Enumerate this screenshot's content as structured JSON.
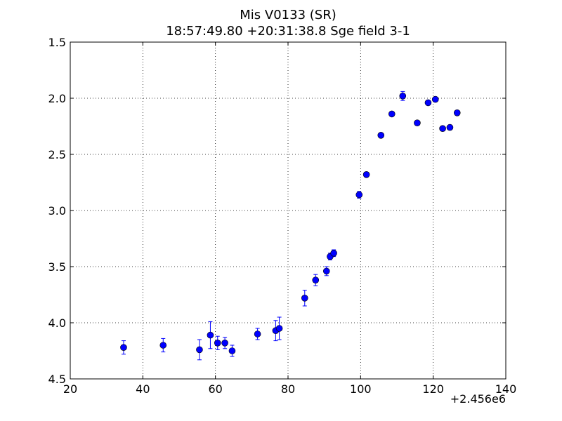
{
  "chart_data": {
    "type": "scatter",
    "title": "Mis V0133 (SR)",
    "subtitle": "18:57:49.80 +20:31:38.8 Sge field 3-1",
    "xlabel": "",
    "ylabel": "",
    "x_offset_label": "+2.456e6",
    "xlim": [
      20,
      140
    ],
    "ylim": [
      4.5,
      1.5
    ],
    "y_inverted": true,
    "grid": true,
    "x_ticks": [
      20,
      40,
      60,
      80,
      100,
      120,
      140
    ],
    "x_tick_labels": [
      "20",
      "40",
      "60",
      "80",
      "100",
      "120",
      "140"
    ],
    "y_ticks": [
      1.5,
      2.0,
      2.5,
      3.0,
      3.5,
      4.0,
      4.5
    ],
    "y_tick_labels": [
      "1.5",
      "2.0",
      "2.5",
      "3.0",
      "3.5",
      "4.0",
      "4.5"
    ],
    "marker_color": "#0000ff",
    "series": [
      {
        "points": [
          {
            "x": 34.7,
            "y": 4.22,
            "err": 0.06
          },
          {
            "x": 45.6,
            "y": 4.2,
            "err": 0.06
          },
          {
            "x": 55.6,
            "y": 4.24,
            "err": 0.09
          },
          {
            "x": 58.6,
            "y": 4.11,
            "err": 0.12
          },
          {
            "x": 60.6,
            "y": 4.18,
            "err": 0.06
          },
          {
            "x": 62.6,
            "y": 4.18,
            "err": 0.05
          },
          {
            "x": 64.6,
            "y": 4.25,
            "err": 0.05
          },
          {
            "x": 71.6,
            "y": 4.1,
            "err": 0.05
          },
          {
            "x": 76.6,
            "y": 4.07,
            "err": 0.09
          },
          {
            "x": 77.6,
            "y": 4.05,
            "err": 0.1
          },
          {
            "x": 84.6,
            "y": 3.78,
            "err": 0.07
          },
          {
            "x": 87.6,
            "y": 3.62,
            "err": 0.05
          },
          {
            "x": 90.6,
            "y": 3.54,
            "err": 0.04
          },
          {
            "x": 91.6,
            "y": 3.41,
            "err": 0.03
          },
          {
            "x": 92.6,
            "y": 3.38,
            "err": 0.03
          },
          {
            "x": 99.6,
            "y": 2.86,
            "err": 0.03
          },
          {
            "x": 101.6,
            "y": 2.68,
            "err": 0.02
          },
          {
            "x": 105.6,
            "y": 2.33,
            "err": 0.02
          },
          {
            "x": 108.6,
            "y": 2.14,
            "err": 0.02
          },
          {
            "x": 111.6,
            "y": 1.98,
            "err": 0.04
          },
          {
            "x": 115.6,
            "y": 2.22,
            "err": 0.02
          },
          {
            "x": 118.6,
            "y": 2.04,
            "err": 0.02
          },
          {
            "x": 120.6,
            "y": 2.01,
            "err": 0.02
          },
          {
            "x": 122.6,
            "y": 2.27,
            "err": 0.02
          },
          {
            "x": 124.6,
            "y": 2.26,
            "err": 0.02
          },
          {
            "x": 126.6,
            "y": 2.13,
            "err": 0.02
          }
        ]
      }
    ]
  }
}
